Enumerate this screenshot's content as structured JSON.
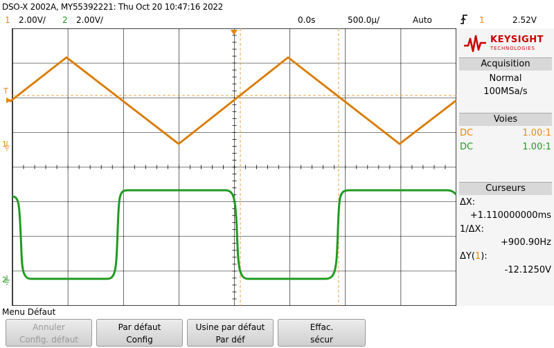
{
  "header": {
    "title": "DSO-X 2002A, MY55392221: Thu Oct 20 10:47:16 2022",
    "ch1_num": "1",
    "ch1_scale": "2.00V/",
    "ch2_num": "2",
    "ch2_scale": "2.00V/",
    "time_delay": "0.0s",
    "time_scale": "500.0µ/",
    "trigger_mode": "Auto",
    "trigger_icon": "rising-edge-icon",
    "trigger_source": "1",
    "trigger_level": "2.52V"
  },
  "brand": {
    "logo_text_1": "KEYSIGHT",
    "logo_text_2": "TECHNOLOGIES",
    "color": "#cc0000"
  },
  "acquisition": {
    "title": "Acquisition",
    "mode": "Normal",
    "rate": "100MSa/s"
  },
  "channels": {
    "title": "Voies",
    "ch1_coupling": "DC",
    "ch1_probe": "1.00:1",
    "ch2_coupling": "DC",
    "ch2_probe": "1.00:1"
  },
  "cursors": {
    "title": "Curseurs",
    "dx_label": "ΔX:",
    "dx_value": "+1.110000000ms",
    "inv_dx_label": "1/ΔX:",
    "inv_dx_value": "+900.90Hz",
    "dy_label_pre": "ΔY(",
    "dy_label_ch": "1",
    "dy_label_post": "):",
    "dy_value": "-12.1250V"
  },
  "markers": {
    "trigger_marker": "T",
    "ch1_marker": "1",
    "ch2_marker": "2"
  },
  "menu": {
    "title": "Menu Défaut",
    "softkeys": [
      {
        "line1": "Annuler",
        "line2": "Config. défaut"
      },
      {
        "line1": "Par défaut",
        "line2": "Config"
      },
      {
        "line1": "Usine par défaut",
        "line2": "Par déf"
      },
      {
        "line1": "Effac.",
        "line2": "sécur"
      }
    ]
  },
  "colors": {
    "ch1": "#e8880c",
    "ch2": "#1f9a1f",
    "grid": "#000000",
    "cursor": "#e8a040"
  }
}
